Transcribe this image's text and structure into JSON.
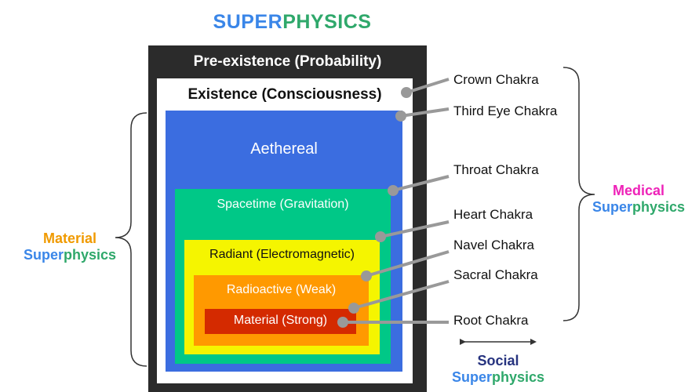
{
  "title": {
    "part1": "SUPER",
    "part2": "PHYSICS"
  },
  "layers": {
    "preexistence": "Pre-existence (Probability)",
    "existence": "Existence (Consciousness)",
    "aethereal": "Aethereal",
    "spacetime": "Spacetime (Gravitation)",
    "radiant": "Radiant (Electromagnetic)",
    "radioactive": "Radioactive (Weak)",
    "material": "Material (Strong)"
  },
  "chakras": {
    "crown": "Crown Chakra",
    "third_eye": "Third Eye Chakra",
    "throat": "Throat Chakra",
    "heart": "Heart Chakra",
    "navel": "Navel Chakra",
    "sacral": "Sacral Chakra",
    "root": "Root Chakra"
  },
  "groups": {
    "material": {
      "line1": "Material",
      "line2a": "Super",
      "line2b": "physics"
    },
    "medical": {
      "line1": "Medical",
      "line2a": "Super",
      "line2b": "physics"
    },
    "social": {
      "line1": "Social",
      "line2a": "Super",
      "line2b": "physics"
    }
  },
  "colors": {
    "super_blue": "#3a86e8",
    "physics_green": "#2fa86b",
    "preexistence": "#2b2b2b",
    "aethereal": "#3b6de0",
    "spacetime": "#00c887",
    "radiant": "#f5f500",
    "radioactive": "#ff9900",
    "material": "#d42a00",
    "material_orange": "#f09a00",
    "medical_magenta": "#ee22b8",
    "social_navy": "#26337f",
    "connector_gray": "#999999"
  }
}
